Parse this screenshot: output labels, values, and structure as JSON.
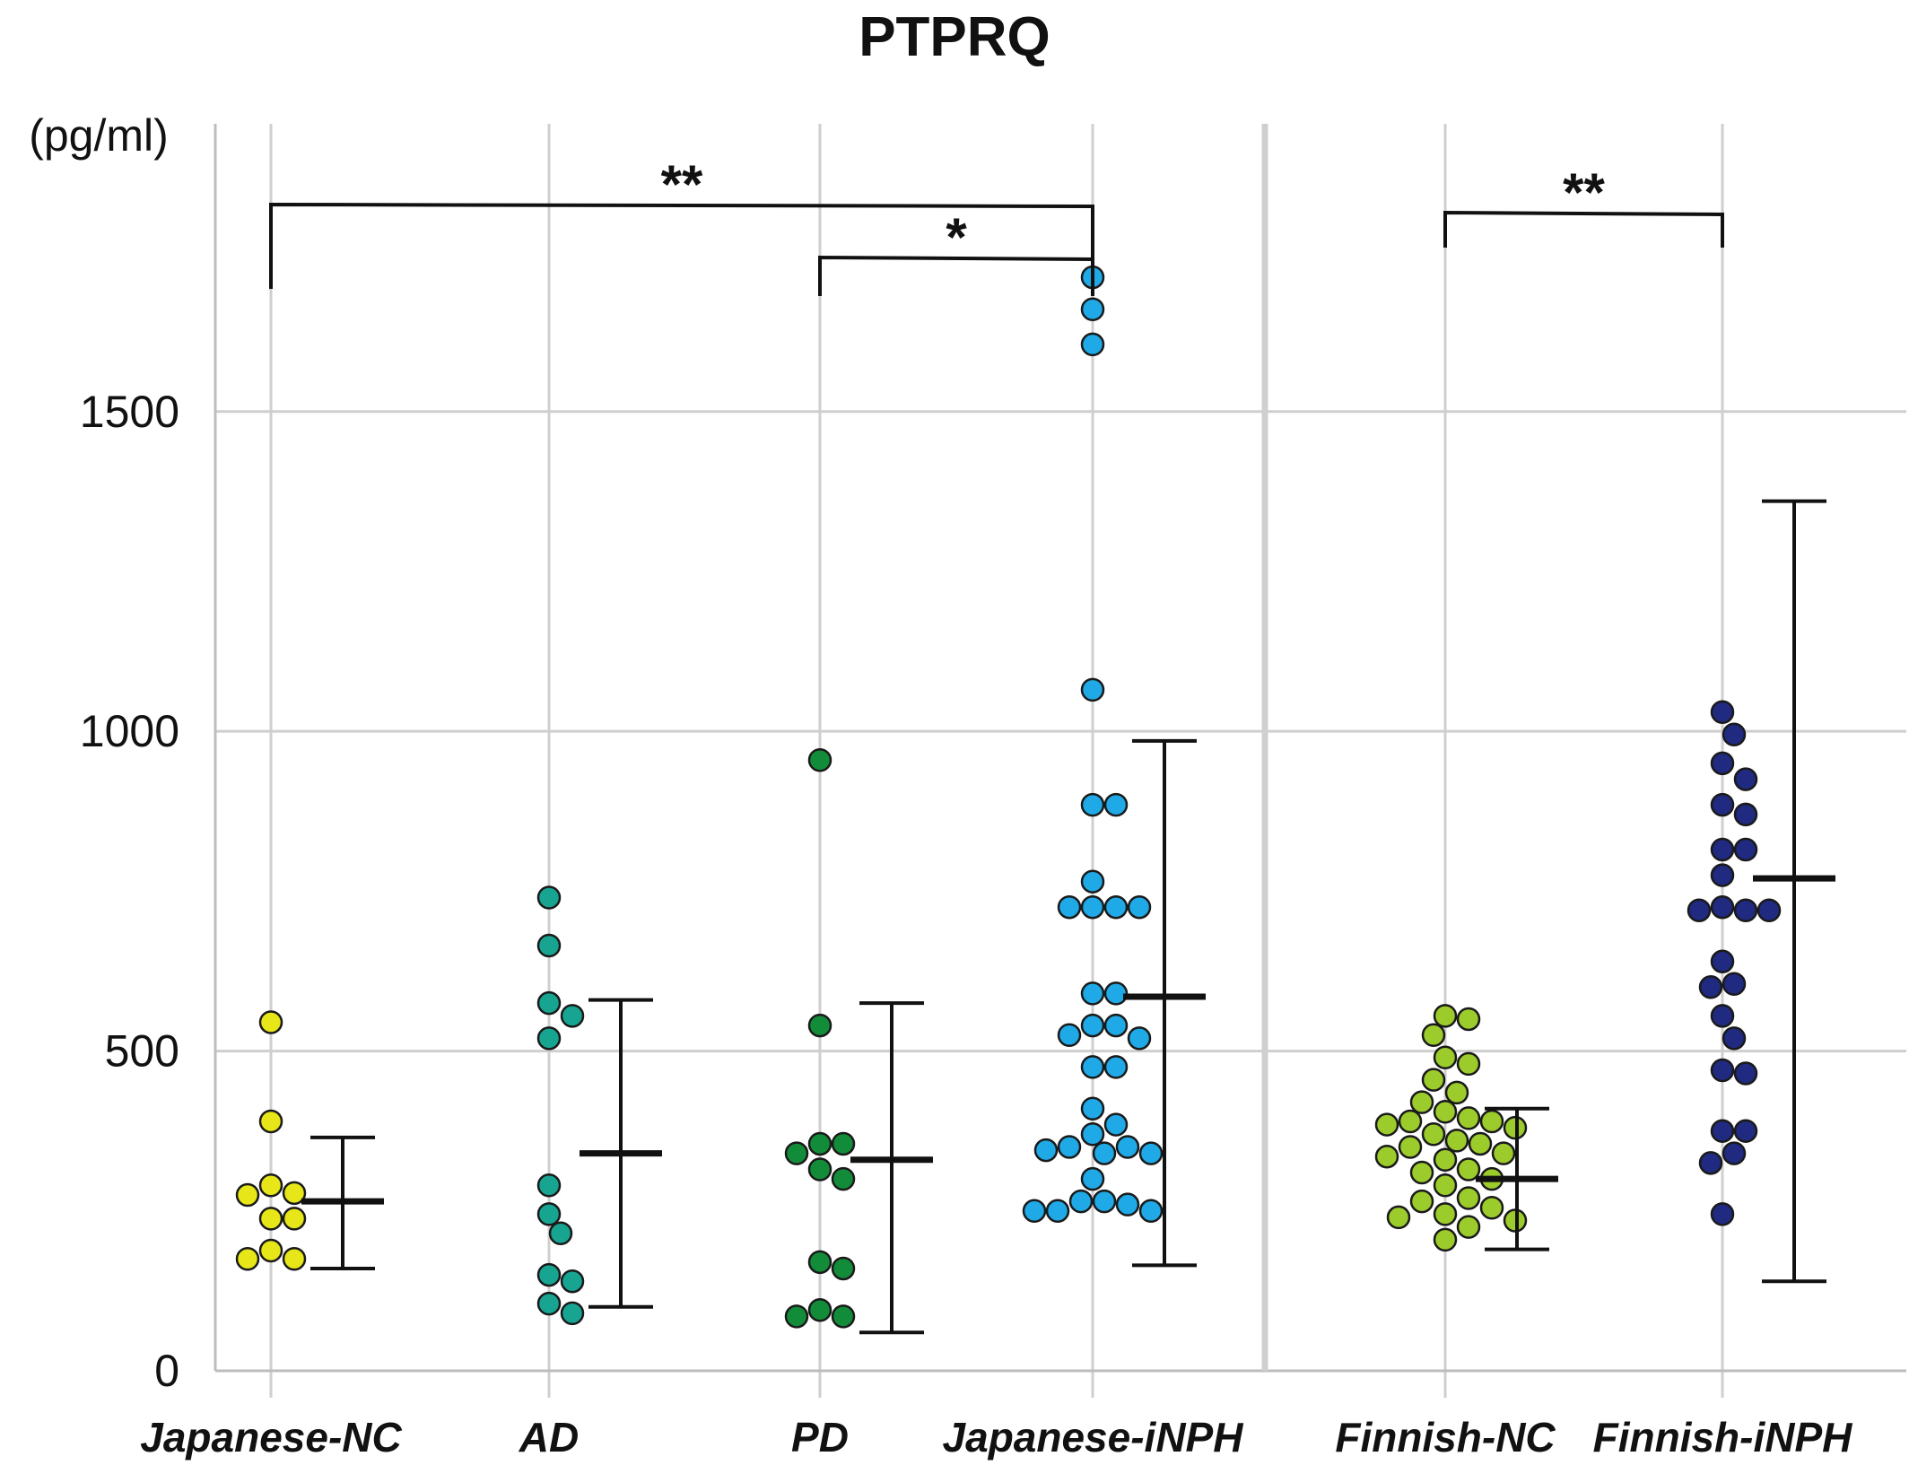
{
  "chart_data": {
    "type": "scatter",
    "title": "PTPRQ",
    "ylabel": "(pg/ml)",
    "ylim": [
      0,
      1950
    ],
    "yticks": [
      0,
      500,
      1000,
      1500
    ],
    "grid": true,
    "panels": [
      {
        "name": "",
        "groups": [
          0,
          1,
          2,
          3
        ]
      },
      {
        "name": "",
        "groups": [
          4,
          5
        ]
      }
    ],
    "groups": [
      {
        "name": "Japanese-NC",
        "color": "#e6e619",
        "values": [
          545,
          390,
          290,
          278,
          275,
          238,
          238,
          188,
          175,
          175
        ],
        "mean": 265,
        "error_low": 160,
        "error_high": 365
      },
      {
        "name": "AD",
        "color": "#17a592",
        "values": [
          740,
          665,
          575,
          555,
          520,
          290,
          245,
          215,
          150,
          140,
          105,
          90
        ],
        "mean": 340,
        "error_low": 100,
        "error_high": 580
      },
      {
        "name": "PD",
        "color": "#138c3a",
        "values": [
          955,
          540,
          355,
          355,
          340,
          315,
          300,
          170,
          160,
          95,
          85,
          85
        ],
        "mean": 330,
        "error_low": 60,
        "error_high": 575
      },
      {
        "name": "Japanese-iNPH",
        "color": "#1fa9e6",
        "values": [
          1710,
          1660,
          1605,
          1065,
          885,
          885,
          765,
          725,
          725,
          725,
          725,
          590,
          590,
          540,
          540,
          525,
          520,
          475,
          475,
          410,
          385,
          370,
          350,
          350,
          345,
          340,
          340,
          300,
          265,
          265,
          260,
          250,
          250,
          250
        ],
        "mean": 585,
        "error_low": 165,
        "error_high": 985
      },
      {
        "name": "Finnish-NC",
        "color": "#9ccc2c",
        "values": [
          555,
          550,
          525,
          490,
          480,
          455,
          435,
          420,
          405,
          395,
          390,
          390,
          385,
          380,
          370,
          360,
          355,
          350,
          340,
          335,
          330,
          315,
          310,
          300,
          290,
          270,
          265,
          255,
          245,
          240,
          235,
          225,
          205
        ],
        "mean": 300,
        "error_low": 190,
        "error_high": 410
      },
      {
        "name": "Finnish-iNPH",
        "color": "#1f2a80",
        "values": [
          1030,
          995,
          950,
          925,
          885,
          870,
          815,
          815,
          775,
          725,
          720,
          720,
          720,
          640,
          605,
          600,
          555,
          520,
          470,
          465,
          375,
          375,
          340,
          325,
          245
        ],
        "mean": 770,
        "error_low": 140,
        "error_high": 1360
      }
    ],
    "significance": [
      {
        "from": 0,
        "to": 3,
        "label": "**"
      },
      {
        "from": 2,
        "to": 3,
        "label": "*"
      },
      {
        "from": 4,
        "to": 5,
        "label": "**"
      }
    ]
  }
}
